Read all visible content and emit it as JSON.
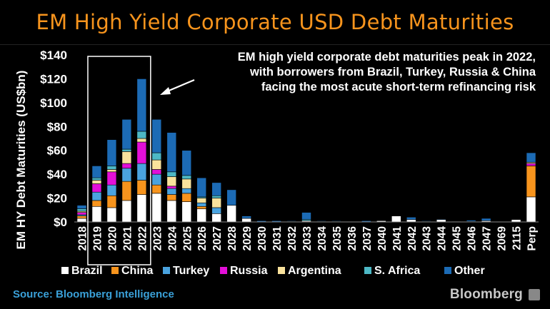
{
  "header": {
    "title": "EM High Yield Corporate USD Debt Maturities"
  },
  "annotation": {
    "line1": "EM high yield corporate debt maturities peak in 2022,",
    "line2": "with borrowers from Brazil, Turkey, Russia & China",
    "line3": "facing the most acute short-term refinancing risk"
  },
  "footer": {
    "source": "Source: Bloomberg Intelligence",
    "brand": "Bloomberg"
  },
  "chart_data": {
    "type": "bar",
    "stacked": true,
    "ylabel": "EM HY Debt Maturities (US$bn)",
    "ylim": [
      0,
      140
    ],
    "yticks": [
      0,
      20,
      40,
      60,
      80,
      100,
      120,
      140
    ],
    "ytick_labels": [
      "$0",
      "$20",
      "$40",
      "$60",
      "$80",
      "$100",
      "$120",
      "$140"
    ],
    "grid": false,
    "legend_position": "bottom",
    "highlight_categories": [
      "2019",
      "2020",
      "2021",
      "2022"
    ],
    "categories": [
      "2018",
      "2019",
      "2020",
      "2021",
      "2022",
      "2023",
      "2024",
      "2025",
      "2026",
      "2027",
      "2028",
      "2029",
      "2030",
      "2031",
      "2032",
      "2033",
      "2034",
      "2035",
      "2036",
      "2037",
      "2040",
      "2041",
      "2042",
      "2043",
      "2044",
      "2045",
      "2046",
      "2047",
      "2069",
      "2115",
      "Perp"
    ],
    "series": [
      {
        "name": "Brazil",
        "color": "#ffffff",
        "values": [
          3,
          13,
          12,
          18,
          23,
          24,
          18,
          17,
          11,
          7,
          14,
          3,
          0,
          0,
          0.5,
          1,
          0.5,
          0.5,
          0,
          0,
          1,
          5,
          2,
          0.5,
          2,
          0.5,
          0.5,
          1,
          0,
          2,
          21
        ]
      },
      {
        "name": "China",
        "color": "#f7941d",
        "values": [
          2,
          5,
          10,
          16,
          12,
          7,
          5,
          7,
          2,
          0,
          0,
          0,
          0,
          0,
          0,
          0,
          0,
          0,
          0,
          0,
          0,
          0,
          0,
          0,
          0,
          0,
          0,
          0,
          0,
          0,
          26
        ]
      },
      {
        "name": "Turkey",
        "color": "#4aa3df",
        "values": [
          1,
          7,
          9,
          11,
          14,
          9,
          5,
          4,
          3,
          5,
          0,
          0,
          0,
          0,
          0,
          0,
          0,
          0,
          0,
          0,
          0,
          0,
          0,
          0,
          0,
          0,
          0,
          0,
          0,
          0,
          0
        ]
      },
      {
        "name": "Russia",
        "color": "#e30fd8",
        "values": [
          2,
          7,
          11,
          4,
          18,
          4,
          2,
          0,
          0,
          0,
          0,
          0,
          0,
          0,
          0,
          0,
          0,
          0,
          0,
          0,
          0,
          0,
          0,
          0,
          0,
          0,
          0,
          0,
          0,
          0,
          2
        ]
      },
      {
        "name": "Argentina",
        "color": "#f9e29c",
        "values": [
          1,
          3,
          2,
          10,
          3,
          8,
          8,
          8,
          4,
          8,
          0,
          0,
          0,
          0,
          0,
          0,
          0,
          0,
          0,
          0,
          0,
          0,
          0,
          0,
          0,
          0,
          0,
          0,
          0,
          0,
          1
        ]
      },
      {
        "name": "S. Africa",
        "color": "#4db8c5",
        "values": [
          2,
          2,
          3,
          2,
          6,
          6,
          4,
          3,
          1,
          2,
          0,
          0,
          0,
          0,
          0,
          1,
          0,
          0,
          0,
          0,
          0,
          0,
          0,
          0,
          0,
          0,
          0,
          0,
          0,
          0,
          0
        ]
      },
      {
        "name": "Other",
        "color": "#1c6bb5",
        "values": [
          3,
          10,
          22,
          25,
          44,
          28,
          33,
          21,
          16,
          11,
          13,
          2,
          1,
          1,
          0.5,
          6,
          0.5,
          0.5,
          0,
          1,
          0,
          0,
          2,
          0.5,
          0.5,
          0,
          1,
          2,
          0,
          0,
          8
        ]
      }
    ]
  }
}
